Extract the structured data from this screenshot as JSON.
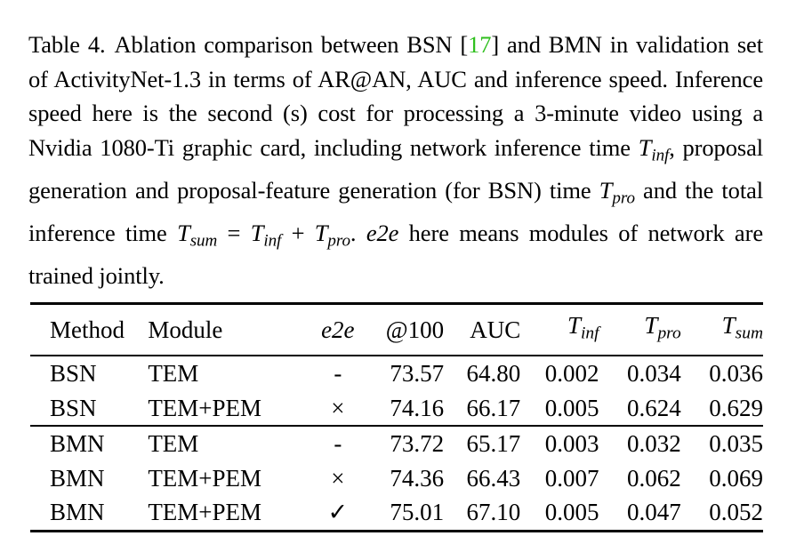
{
  "caption": {
    "label": "Table 4.",
    "part1": "Ablation comparison between BSN [",
    "ref": "17",
    "part2": "] and BMN in validation set of ActivityNet-1.3 in terms of AR@AN, AUC and inference speed. Inference speed here is the second (s) cost for processing a 3-minute video using a Nvidia 1080-Ti graphic card, including network inference time ",
    "t_inf": "T",
    "t_inf_sub": "inf",
    "part3": ", proposal generation and proposal-feature generation (for BSN) time ",
    "t_pro": "T",
    "t_pro_sub": "pro",
    "part4": " and the total inference time ",
    "t_sum": "T",
    "t_sum_sub": "sum",
    "eq": " = ",
    "t_inf2": "T",
    "t_inf2_sub": "inf",
    "plus": " + ",
    "t_pro2": "T",
    "t_pro2_sub": "pro",
    "dot": ".",
    "e2e": "e2e",
    "part5": " here means modules of network are trained jointly."
  },
  "table": {
    "headers": {
      "method": "Method",
      "module": "Module",
      "e2e": "e2e",
      "ar100": "@100",
      "auc": "AUC",
      "tinf_sym": "T",
      "tinf_sub": "inf",
      "tpro_sym": "T",
      "tpro_sub": "pro",
      "tsum_sym": "T",
      "tsum_sub": "sum"
    },
    "rows": [
      {
        "method": "BSN",
        "module": "TEM",
        "e2e": "-",
        "ar100": "73.57",
        "auc": "64.80",
        "tinf": "0.002",
        "tpro": "0.034",
        "tsum": "0.036"
      },
      {
        "method": "BSN",
        "module": "TEM+PEM",
        "e2e": "×",
        "ar100": "74.16",
        "auc": "66.17",
        "tinf": "0.005",
        "tpro": "0.624",
        "tsum": "0.629"
      },
      {
        "method": "BMN",
        "module": "TEM",
        "e2e": "-",
        "ar100": "73.72",
        "auc": "65.17",
        "tinf": "0.003",
        "tpro": "0.032",
        "tsum": "0.035"
      },
      {
        "method": "BMN",
        "module": "TEM+PEM",
        "e2e": "×",
        "ar100": "74.36",
        "auc": "66.43",
        "tinf": "0.007",
        "tpro": "0.062",
        "tsum": "0.069"
      },
      {
        "method": "BMN",
        "module": "TEM+PEM",
        "e2e": "✓",
        "ar100": "75.01",
        "auc": "67.10",
        "tinf": "0.005",
        "tpro": "0.047",
        "tsum": "0.052"
      }
    ]
  },
  "colors": {
    "ref_link": "#2fbf1e",
    "text": "#000000"
  }
}
